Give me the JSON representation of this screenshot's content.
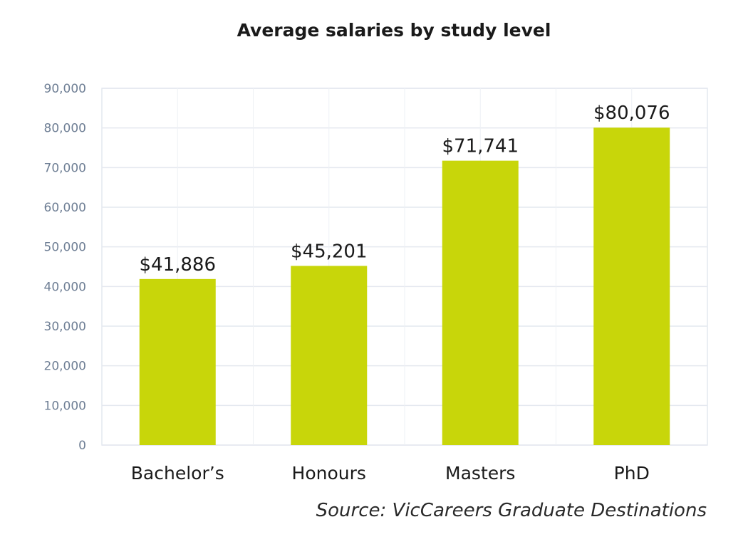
{
  "chart_data": {
    "type": "bar",
    "title": "Average salaries by study level",
    "categories": [
      "Bachelor’s",
      "Honours",
      "Masters",
      "PhD"
    ],
    "values": [
      41886,
      45201,
      71741,
      80076
    ],
    "data_labels": [
      "$41,886",
      "$45,201",
      "$71,741",
      "$80,076"
    ],
    "y_ticks": [
      "0",
      "10,000",
      "20,000",
      "30,000",
      "40,000",
      "50,000",
      "60,000",
      "70,000",
      "80,000",
      "90,000"
    ],
    "ylim": [
      0,
      90000
    ],
    "xlabel": "",
    "ylabel": "",
    "grid": true,
    "bar_color": "#c8d60a",
    "source": "Source: VicCareers Graduate Destinations"
  }
}
